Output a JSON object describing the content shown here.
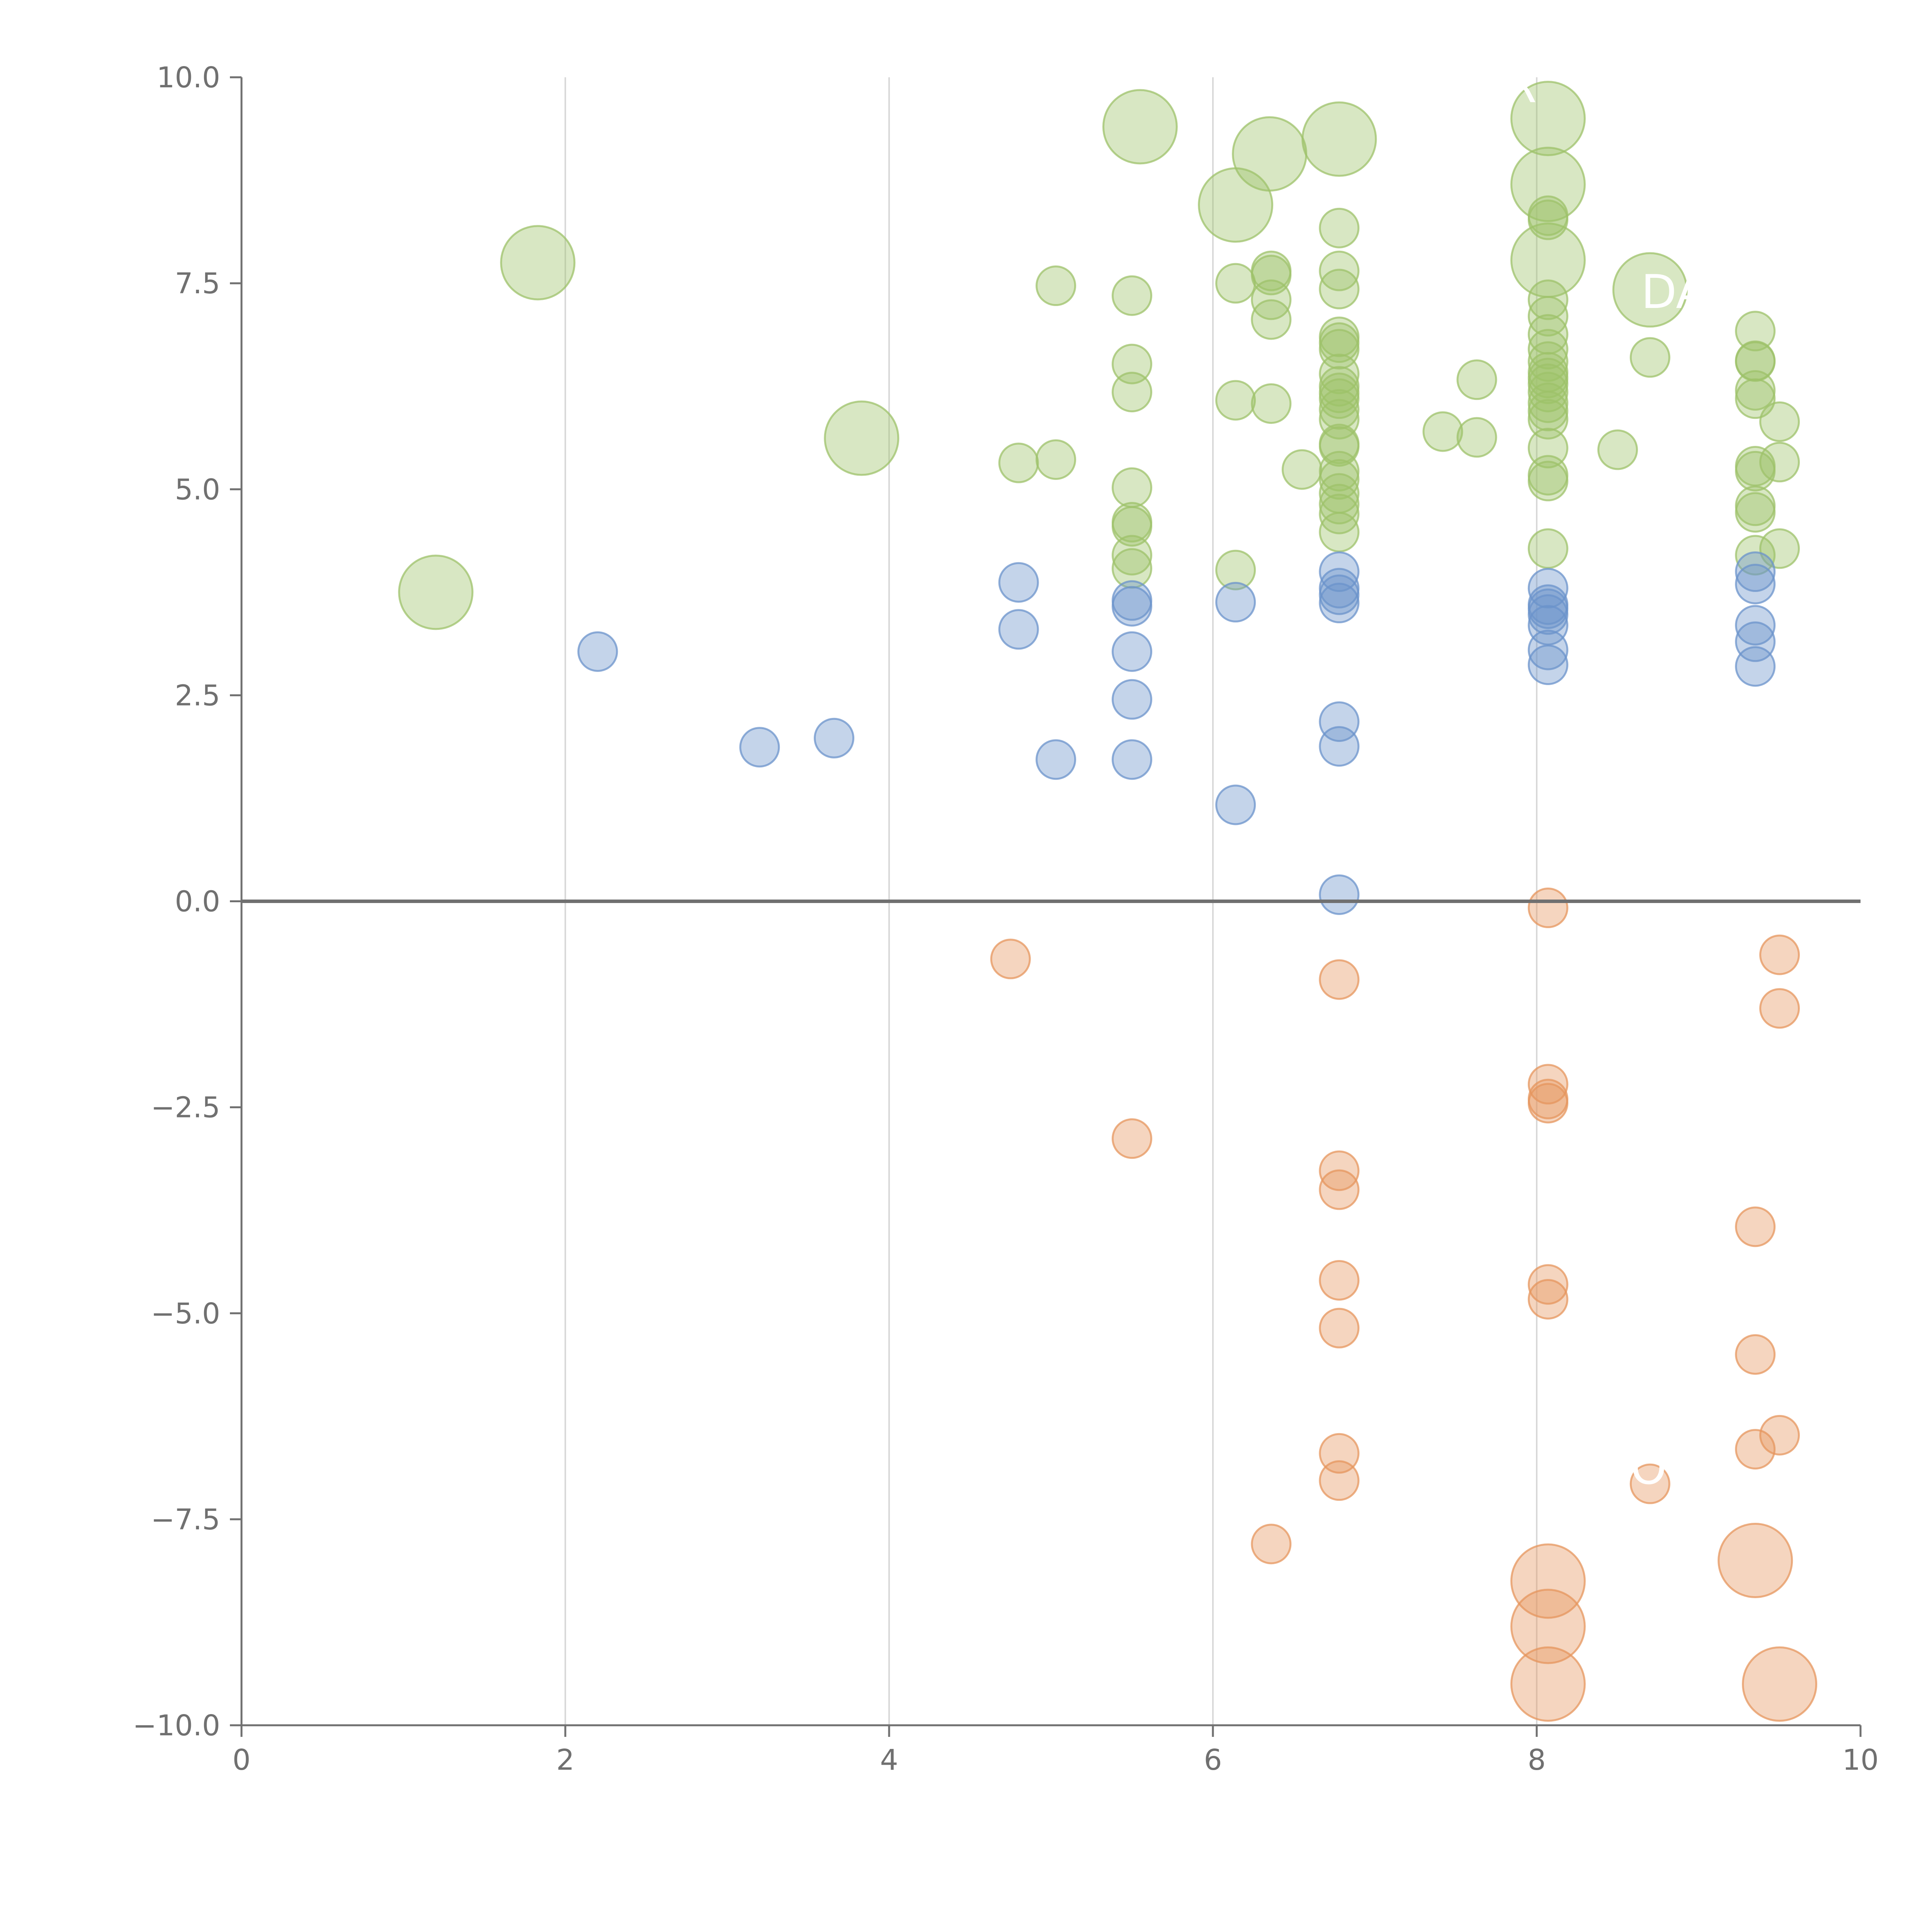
{
  "chart_data": {
    "type": "scatter",
    "title": "",
    "xlabel": "",
    "ylabel": "",
    "xlim": [
      0,
      10
    ],
    "ylim": [
      -10,
      10
    ],
    "x_ticks": [
      "0",
      "2",
      "4",
      "6",
      "8",
      "10"
    ],
    "y_ticks": [
      "−10.0",
      "−7.5",
      "−5.0",
      "−2.5",
      "0.0",
      "2.5",
      "5.0",
      "7.5",
      "10.0"
    ],
    "grid": "vertical",
    "zero_line": true,
    "colors": {
      "green": "#9dc26a",
      "blue": "#6b93cb",
      "orange": "#e6955e",
      "axis": "#707070",
      "grid": "#d8d8d8"
    },
    "series": [
      {
        "name": "green",
        "color": "#9dc26a",
        "points": [
          [
            1.2,
            3.75,
            "l"
          ],
          [
            1.83,
            7.75,
            "l"
          ],
          [
            3.83,
            5.62,
            "l"
          ],
          [
            5.55,
            9.4,
            "l"
          ],
          [
            6.14,
            8.45,
            "l"
          ],
          [
            6.35,
            9.07,
            "l"
          ],
          [
            6.78,
            9.25,
            "l"
          ],
          [
            8.07,
            9.5,
            "l"
          ],
          [
            8.07,
            8.7,
            "l"
          ],
          [
            8.07,
            7.78,
            "l"
          ],
          [
            8.7,
            7.42,
            "l"
          ],
          [
            4.8,
            5.32,
            "s"
          ],
          [
            5.03,
            7.47,
            "s"
          ],
          [
            5.03,
            5.36,
            "s"
          ],
          [
            5.5,
            7.35,
            "s"
          ],
          [
            5.5,
            6.52,
            "s"
          ],
          [
            5.5,
            6.18,
            "s"
          ],
          [
            5.5,
            5.02,
            "s"
          ],
          [
            5.5,
            4.6,
            "s"
          ],
          [
            5.5,
            4.55,
            "s"
          ],
          [
            5.5,
            4.2,
            "s"
          ],
          [
            5.5,
            4.04,
            "s"
          ],
          [
            6.14,
            7.5,
            "s"
          ],
          [
            6.14,
            6.08,
            "s"
          ],
          [
            6.14,
            4.02,
            "s"
          ],
          [
            6.36,
            7.65,
            "s"
          ],
          [
            6.36,
            7.6,
            "s"
          ],
          [
            6.36,
            7.3,
            "s"
          ],
          [
            6.36,
            7.06,
            "s"
          ],
          [
            6.36,
            6.04,
            "s"
          ],
          [
            6.55,
            5.24,
            "s"
          ],
          [
            6.78,
            8.17,
            "s"
          ],
          [
            6.78,
            7.65,
            "s"
          ],
          [
            6.78,
            7.43,
            "s"
          ],
          [
            6.78,
            6.85,
            "s"
          ],
          [
            6.78,
            6.78,
            "s"
          ],
          [
            6.78,
            6.7,
            "s"
          ],
          [
            6.78,
            6.4,
            "s"
          ],
          [
            6.78,
            6.25,
            "s"
          ],
          [
            6.78,
            6.17,
            "s"
          ],
          [
            6.78,
            6.1,
            "s"
          ],
          [
            6.78,
            5.97,
            "s"
          ],
          [
            6.78,
            5.85,
            "s"
          ],
          [
            6.78,
            5.55,
            "s"
          ],
          [
            6.78,
            5.52,
            "s"
          ],
          [
            6.78,
            5.22,
            "s"
          ],
          [
            6.78,
            5.12,
            "s"
          ],
          [
            6.78,
            4.95,
            "s"
          ],
          [
            6.78,
            4.82,
            "s"
          ],
          [
            6.78,
            4.7,
            "s"
          ],
          [
            6.78,
            4.48,
            "s"
          ],
          [
            7.42,
            5.7,
            "s"
          ],
          [
            7.63,
            6.33,
            "s"
          ],
          [
            7.63,
            5.63,
            "s"
          ],
          [
            8.07,
            8.32,
            "s"
          ],
          [
            8.07,
            8.27,
            "s"
          ],
          [
            8.07,
            7.3,
            "s"
          ],
          [
            8.07,
            7.1,
            "s"
          ],
          [
            8.07,
            6.88,
            "s"
          ],
          [
            8.07,
            6.7,
            "s"
          ],
          [
            8.07,
            6.55,
            "s"
          ],
          [
            8.07,
            6.42,
            "s"
          ],
          [
            8.07,
            6.35,
            "s"
          ],
          [
            8.07,
            6.28,
            "s"
          ],
          [
            8.07,
            6.18,
            "s"
          ],
          [
            8.07,
            6.05,
            "s"
          ],
          [
            8.07,
            5.95,
            "s"
          ],
          [
            8.07,
            5.85,
            "s"
          ],
          [
            8.07,
            5.5,
            "s"
          ],
          [
            8.07,
            5.17,
            "s"
          ],
          [
            8.07,
            5.1,
            "s"
          ],
          [
            8.07,
            4.28,
            "s"
          ],
          [
            8.5,
            5.48,
            "s"
          ],
          [
            8.7,
            6.6,
            "s"
          ],
          [
            9.35,
            6.92,
            "s"
          ],
          [
            9.35,
            6.56,
            "s"
          ],
          [
            9.35,
            6.55,
            "s"
          ],
          [
            9.35,
            6.2,
            "s"
          ],
          [
            9.35,
            6.1,
            "s"
          ],
          [
            9.35,
            5.28,
            "s"
          ],
          [
            9.35,
            5.22,
            "s"
          ],
          [
            9.35,
            4.8,
            "s"
          ],
          [
            9.35,
            4.72,
            "s"
          ],
          [
            9.35,
            4.2,
            "s"
          ],
          [
            9.5,
            5.82,
            "s"
          ],
          [
            9.5,
            5.33,
            "s"
          ],
          [
            9.5,
            4.28,
            "s"
          ]
        ]
      },
      {
        "name": "blue",
        "color": "#6b93cb",
        "points": [
          [
            2.2,
            3.03,
            "s"
          ],
          [
            3.2,
            1.87,
            "s"
          ],
          [
            3.66,
            1.98,
            "s"
          ],
          [
            4.8,
            3.87,
            "s"
          ],
          [
            4.8,
            3.3,
            "s"
          ],
          [
            5.03,
            1.72,
            "s"
          ],
          [
            5.5,
            3.65,
            "s"
          ],
          [
            5.5,
            3.58,
            "s"
          ],
          [
            5.5,
            3.03,
            "s"
          ],
          [
            5.5,
            2.45,
            "s"
          ],
          [
            5.5,
            1.72,
            "s"
          ],
          [
            6.14,
            3.63,
            "s"
          ],
          [
            6.14,
            1.17,
            "s"
          ],
          [
            6.78,
            4.0,
            "s"
          ],
          [
            6.78,
            3.8,
            "s"
          ],
          [
            6.78,
            3.72,
            "s"
          ],
          [
            6.78,
            3.62,
            "s"
          ],
          [
            6.78,
            2.18,
            "s"
          ],
          [
            6.78,
            1.88,
            "s"
          ],
          [
            6.78,
            0.08,
            "s"
          ],
          [
            8.07,
            3.8,
            "s"
          ],
          [
            8.07,
            3.6,
            "s"
          ],
          [
            8.07,
            3.55,
            "s"
          ],
          [
            8.07,
            3.48,
            "s"
          ],
          [
            8.07,
            3.35,
            "s"
          ],
          [
            8.07,
            3.05,
            "s"
          ],
          [
            8.07,
            2.87,
            "s"
          ],
          [
            9.35,
            4.0,
            "s"
          ],
          [
            9.35,
            3.85,
            "s"
          ],
          [
            9.35,
            3.35,
            "s"
          ],
          [
            9.35,
            3.15,
            "s"
          ],
          [
            9.35,
            2.85,
            "s"
          ]
        ]
      },
      {
        "name": "orange",
        "color": "#e6955e",
        "points": [
          [
            4.75,
            -0.7,
            "s"
          ],
          [
            5.5,
            -2.88,
            "s"
          ],
          [
            6.36,
            -7.8,
            "s"
          ],
          [
            6.78,
            -0.95,
            "s"
          ],
          [
            6.78,
            -3.27,
            "s"
          ],
          [
            6.78,
            -3.5,
            "s"
          ],
          [
            6.78,
            -4.6,
            "s"
          ],
          [
            6.78,
            -5.18,
            "s"
          ],
          [
            6.78,
            -6.7,
            "s"
          ],
          [
            6.78,
            -7.03,
            "s"
          ],
          [
            8.07,
            -0.08,
            "s"
          ],
          [
            8.07,
            -2.22,
            "s"
          ],
          [
            8.07,
            -2.4,
            "s"
          ],
          [
            8.07,
            -2.45,
            "s"
          ],
          [
            8.07,
            -4.65,
            "s"
          ],
          [
            8.07,
            -4.83,
            "s"
          ],
          [
            8.07,
            -8.25,
            "l"
          ],
          [
            8.07,
            -8.8,
            "l"
          ],
          [
            8.07,
            -9.5,
            "l"
          ],
          [
            8.7,
            -7.07,
            "s"
          ],
          [
            9.35,
            -3.95,
            "s"
          ],
          [
            9.35,
            -5.5,
            "s"
          ],
          [
            9.35,
            -6.65,
            "s"
          ],
          [
            9.35,
            -8.0,
            "l"
          ],
          [
            9.5,
            -0.65,
            "s"
          ],
          [
            9.5,
            -1.3,
            "s"
          ],
          [
            9.5,
            -6.48,
            "s"
          ],
          [
            9.5,
            -9.5,
            "l"
          ]
        ]
      }
    ],
    "annotations": [
      {
        "text": "R",
        "x": 7.9,
        "y": 9.7
      },
      {
        "text": "DA",
        "x": 8.85,
        "y": 7.2
      },
      {
        "text": "SO",
        "x": 8.6,
        "y": -7.07
      }
    ]
  }
}
